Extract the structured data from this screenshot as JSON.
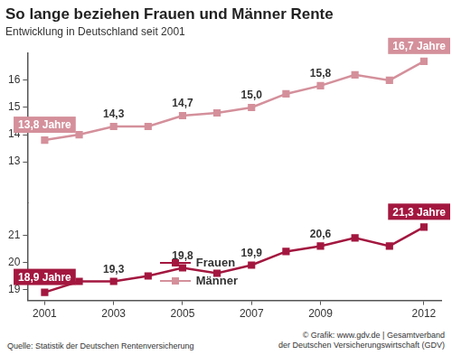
{
  "chart_data": {
    "type": "line",
    "title": "So lange beziehen Frauen und Männer Rente",
    "subtitle": "Entwicklung in Deutschland seit 2001",
    "source": "Quelle: Statistik der Deutschen Rentenversicherung",
    "credit": [
      "© Grafik: www.gdv.de | Gesamtverband",
      "der Deutschen Versicherungswirtschaft (GDV)"
    ],
    "categories": [
      "2001",
      null,
      "2003",
      null,
      "2005",
      null,
      "2007",
      null,
      "2009",
      null,
      null,
      "2012"
    ],
    "series": [
      {
        "name": "Frauen",
        "color": "#a3173f",
        "marker": "square",
        "values": [
          18.9,
          19.3,
          19.3,
          19.5,
          19.8,
          19.6,
          19.9,
          20.4,
          20.6,
          20.9,
          20.6,
          21.3
        ],
        "value_labels": [
          "18,9 Jahre",
          null,
          "19,3",
          null,
          "19,8",
          null,
          "19,9",
          null,
          "20,6",
          null,
          null,
          "21,3 Jahre"
        ]
      },
      {
        "name": "Männer",
        "color": "#d4909b",
        "marker": "square",
        "axis": "y2",
        "values": [
          13.8,
          14.0,
          14.3,
          14.3,
          14.7,
          14.8,
          15.0,
          15.5,
          15.8,
          16.2,
          16.0,
          16.7
        ],
        "value_labels": [
          "13,8 Jahre",
          null,
          "14,3",
          null,
          "14,7",
          null,
          "15,0",
          null,
          "15,8",
          null,
          null,
          "16,7 Jahre"
        ]
      }
    ],
    "ylim": [
      18.6,
      22.2
    ],
    "yticks": [
      19,
      20,
      21
    ],
    "y2lim": [
      11.5,
      17
    ],
    "y2ticks": [
      13,
      14,
      15,
      16
    ],
    "grid": false,
    "legend": "bottom",
    "data_labels": true
  }
}
